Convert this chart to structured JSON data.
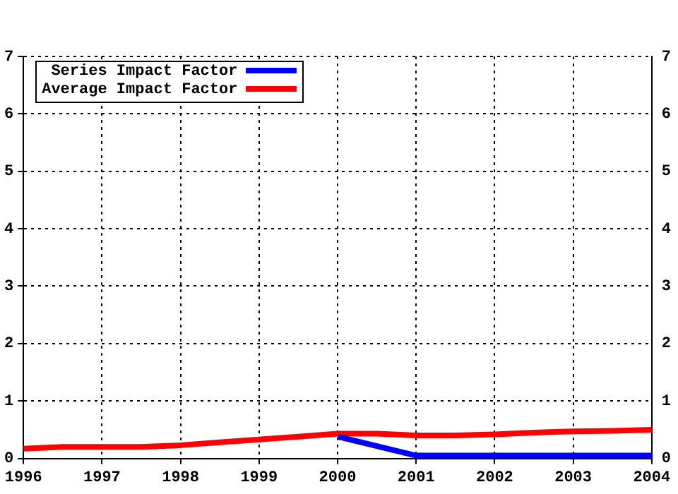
{
  "chart_data": {
    "type": "line",
    "x": [
      1996,
      1996.5,
      1997,
      1997.5,
      1998,
      1998.5,
      1999,
      1999.5,
      2000,
      2000.5,
      2001,
      2001.5,
      2002,
      2002.5,
      2003,
      2003.5,
      2004
    ],
    "series": [
      {
        "name": "Series Impact Factor",
        "color": "#0000ff",
        "x": [
          2000,
          2001,
          2004
        ],
        "values": [
          0.38,
          0.05,
          0.05
        ]
      },
      {
        "name": "Average Impact Factor",
        "color": "#ff0000",
        "values": [
          0.17,
          0.2,
          0.2,
          0.2,
          0.23,
          0.28,
          0.33,
          0.38,
          0.43,
          0.43,
          0.4,
          0.4,
          0.42,
          0.45,
          0.47,
          0.48,
          0.5
        ]
      }
    ],
    "xlim": [
      1996,
      2004
    ],
    "xticks": [
      1996,
      1997,
      1998,
      1999,
      2000,
      2001,
      2002,
      2003,
      2004
    ],
    "ylim": [
      0,
      7
    ],
    "yticks": [
      0,
      1,
      2,
      3,
      4,
      5,
      6,
      7
    ],
    "y2lim": [
      0,
      7
    ],
    "y2ticks": [
      0,
      1,
      2,
      3,
      4,
      5,
      6,
      7
    ],
    "grid": true,
    "legend": "top left",
    "marker": "none",
    "line_style": "solid"
  }
}
